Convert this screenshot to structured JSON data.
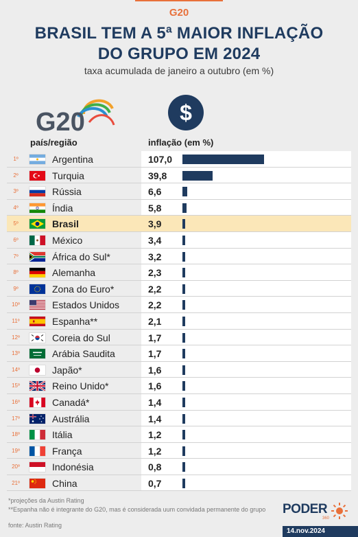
{
  "header": {
    "kicker": "G20",
    "title_line1": "BRASIL TEM A 5ª MAIOR INFLAÇÃO",
    "title_line2": "DO GRUPO EM 2024",
    "subtitle": "taxa acumulada de janeiro a outubro (em %)"
  },
  "logo": {
    "text": "G20"
  },
  "icon_dollar": "$",
  "columns": {
    "country": "país/região",
    "value": "inflação (em %)"
  },
  "chart_data": {
    "type": "bar",
    "orientation": "horizontal",
    "title": "BRASIL TEM A 5ª MAIOR INFLAÇÃO DO GRUPO EM 2024",
    "subtitle": "taxa acumulada de janeiro a outubro (em %)",
    "xlabel": "inflação (em %)",
    "ylabel": "país/região",
    "highlight": "Brasil",
    "bar_max": 107.0,
    "rows": [
      {
        "rank": "1º",
        "country": "Argentina",
        "value": 107.0,
        "label": "107,0",
        "flag": "argentina"
      },
      {
        "rank": "2º",
        "country": "Turquia",
        "value": 39.8,
        "label": "39,8",
        "flag": "turkey"
      },
      {
        "rank": "3º",
        "country": "Rússia",
        "value": 6.6,
        "label": "6,6",
        "flag": "russia"
      },
      {
        "rank": "4º",
        "country": "Índia",
        "value": 5.8,
        "label": "5,8",
        "flag": "india"
      },
      {
        "rank": "5º",
        "country": "Brasil",
        "value": 3.9,
        "label": "3,9",
        "flag": "brazil"
      },
      {
        "rank": "6º",
        "country": "México",
        "value": 3.4,
        "label": "3,4",
        "flag": "mexico"
      },
      {
        "rank": "7º",
        "country": "África do Sul*",
        "value": 3.2,
        "label": "3,2",
        "flag": "south-africa"
      },
      {
        "rank": "8º",
        "country": "Alemanha",
        "value": 2.3,
        "label": "2,3",
        "flag": "germany"
      },
      {
        "rank": "9º",
        "country": "Zona do Euro*",
        "value": 2.2,
        "label": "2,2",
        "flag": "eu"
      },
      {
        "rank": "10º",
        "country": "Estados Unidos",
        "value": 2.2,
        "label": "2,2",
        "flag": "usa"
      },
      {
        "rank": "11º",
        "country": "Espanha**",
        "value": 2.1,
        "label": "2,1",
        "flag": "spain"
      },
      {
        "rank": "12º",
        "country": "Coreia do Sul",
        "value": 1.7,
        "label": "1,7",
        "flag": "south-korea"
      },
      {
        "rank": "13º",
        "country": "Arábia Saudita",
        "value": 1.7,
        "label": "1,7",
        "flag": "saudi-arabia"
      },
      {
        "rank": "14º",
        "country": "Japão*",
        "value": 1.6,
        "label": "1,6",
        "flag": "japan"
      },
      {
        "rank": "15º",
        "country": "Reino Unido*",
        "value": 1.6,
        "label": "1,6",
        "flag": "uk"
      },
      {
        "rank": "16º",
        "country": "Canadá*",
        "value": 1.4,
        "label": "1,4",
        "flag": "canada"
      },
      {
        "rank": "17º",
        "country": "Austrália",
        "value": 1.4,
        "label": "1,4",
        "flag": "australia"
      },
      {
        "rank": "18º",
        "country": "Itália",
        "value": 1.2,
        "label": "1,2",
        "flag": "italy"
      },
      {
        "rank": "19º",
        "country": "França",
        "value": 1.2,
        "label": "1,2",
        "flag": "france"
      },
      {
        "rank": "20º",
        "country": "Indonésia",
        "value": 0.8,
        "label": "0,8",
        "flag": "indonesia"
      },
      {
        "rank": "21º",
        "country": "China",
        "value": 0.7,
        "label": "0,7",
        "flag": "china"
      }
    ]
  },
  "footnotes": {
    "note1": "*projeções da Austin Rating",
    "note2": "**Espanha não é integrante do G20, mas é considerada uum convidada permanente do grupo",
    "source": "fonte: Austin Rating"
  },
  "brand": {
    "name": "PODER",
    "sub": "360",
    "date": "14.nov.2024"
  },
  "colors": {
    "accent": "#e8703a",
    "navy": "#1f3b5f",
    "highlight": "#fbe7b8",
    "background": "#ededed"
  }
}
